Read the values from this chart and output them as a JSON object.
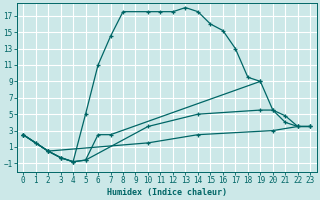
{
  "bg_color": "#cce8e8",
  "grid_color": "#b0d8d8",
  "line_color": "#006666",
  "xlabel": "Humidex (Indice chaleur)",
  "xlim": [
    -0.5,
    23.5
  ],
  "ylim": [
    -2.0,
    18.5
  ],
  "xticks": [
    0,
    1,
    2,
    3,
    4,
    5,
    6,
    7,
    8,
    9,
    10,
    11,
    12,
    13,
    14,
    15,
    16,
    17,
    18,
    19,
    20,
    21,
    22,
    23
  ],
  "yticks": [
    -1,
    1,
    3,
    5,
    7,
    9,
    11,
    13,
    15,
    17
  ],
  "curves": [
    {
      "x": [
        0,
        1,
        2,
        3,
        4,
        5,
        6,
        7,
        8,
        10,
        11,
        12,
        13,
        14,
        15,
        16,
        17,
        18,
        19
      ],
      "y": [
        2.5,
        1.5,
        0.5,
        -0.3,
        -0.8,
        5.0,
        11.0,
        14.5,
        17.5,
        17.5,
        17.5,
        17.5,
        18.0,
        17.5,
        16.0,
        15.2,
        13.0,
        9.5,
        9.0
      ]
    },
    {
      "x": [
        0,
        1,
        2,
        3,
        4,
        5,
        6,
        7,
        19,
        20,
        21,
        22,
        23
      ],
      "y": [
        2.5,
        1.5,
        0.5,
        -0.3,
        -0.8,
        -0.6,
        2.5,
        2.5,
        9.0,
        5.5,
        4.8,
        3.5,
        3.5
      ]
    },
    {
      "x": [
        0,
        2,
        3,
        4,
        5,
        10,
        14,
        19,
        20,
        21,
        22,
        23
      ],
      "y": [
        2.5,
        0.5,
        -0.3,
        -0.8,
        -0.6,
        3.5,
        5.0,
        5.5,
        5.5,
        4.0,
        3.5,
        3.5
      ]
    },
    {
      "x": [
        0,
        2,
        10,
        14,
        20,
        22,
        23
      ],
      "y": [
        2.5,
        0.5,
        1.5,
        2.5,
        3.0,
        3.5,
        3.5
      ]
    }
  ]
}
